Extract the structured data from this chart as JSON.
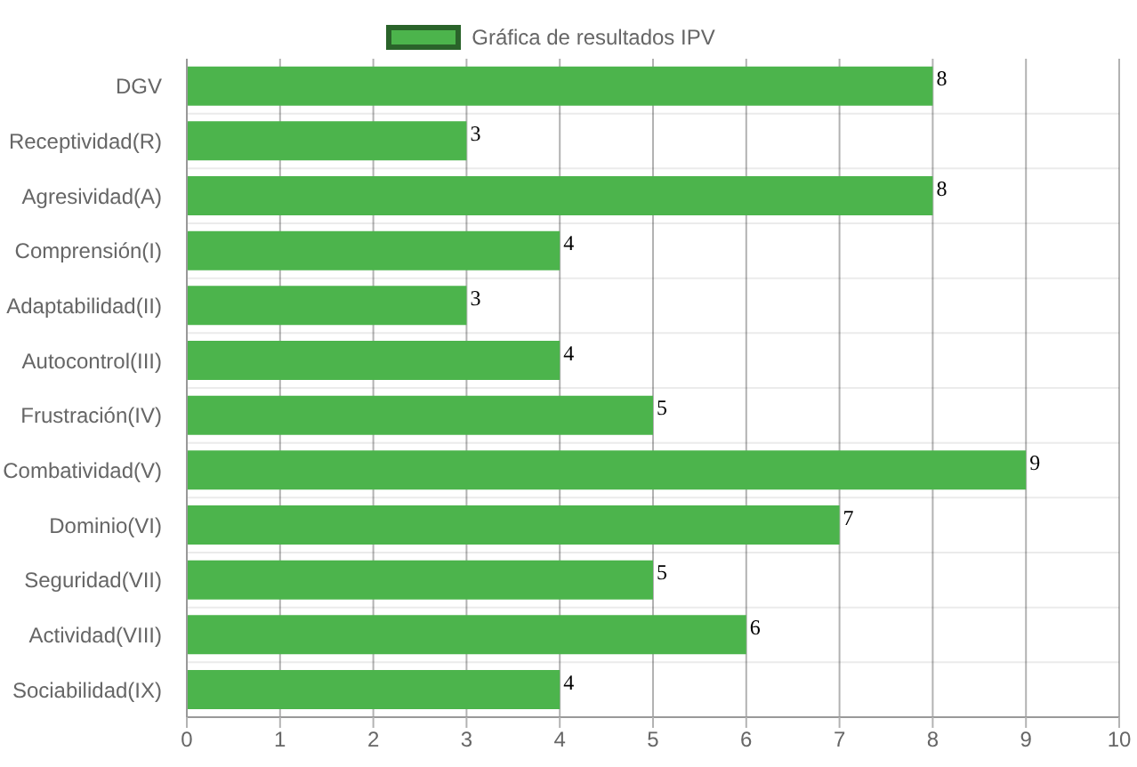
{
  "chart_data": {
    "type": "bar",
    "orientation": "horizontal",
    "categories": [
      "DGV",
      "Receptividad(R)",
      "Agresividad(A)",
      "Comprensión(I)",
      "Adaptabilidad(II)",
      "Autocontrol(III)",
      "Frustración(IV)",
      "Combatividad(V)",
      "Dominio(VI)",
      "Seguridad(VII)",
      "Actividad(VIII)",
      "Sociabilidad(IX)"
    ],
    "series": [
      {
        "name": "Gráfica de resultados IPV",
        "color": "#4cb44c",
        "values": [
          8,
          3,
          8,
          4,
          3,
          4,
          5,
          9,
          7,
          5,
          6,
          4
        ]
      }
    ],
    "xlim": [
      0,
      10
    ],
    "xticks": [
      0,
      1,
      2,
      3,
      4,
      5,
      6,
      7,
      8,
      9,
      10
    ],
    "grid": true,
    "legend": "top",
    "data_labels": true
  }
}
